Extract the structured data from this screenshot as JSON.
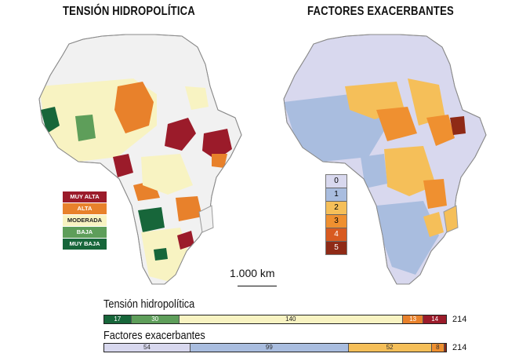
{
  "titles": {
    "left": "TENSIÓN HIDROPOLÍTICA",
    "right": "FACTORES EXACERBANTES"
  },
  "tension_legend": [
    {
      "label": "MUY ALTA",
      "color": "#9b1b2a"
    },
    {
      "label": "ALTA",
      "color": "#e8812b"
    },
    {
      "label": "MODERADA",
      "color": "#f8f3c2"
    },
    {
      "label": "BAJA",
      "color": "#5e9e5a"
    },
    {
      "label": "MUY BAJA",
      "color": "#17663a"
    }
  ],
  "factors_legend": [
    {
      "label": "0",
      "color": "#d8d8ee"
    },
    {
      "label": "1",
      "color": "#a9bddf"
    },
    {
      "label": "2",
      "color": "#f5bf59"
    },
    {
      "label": "3",
      "color": "#ef9030"
    },
    {
      "label": "4",
      "color": "#d85a20"
    },
    {
      "label": "5",
      "color": "#8f2a16"
    }
  ],
  "scale": {
    "label": "1.000 km"
  },
  "bars": {
    "tension": {
      "title": "Tensión hidropolítica",
      "total": "214",
      "segments": [
        {
          "value": 17,
          "label": "17",
          "color": "#17663a",
          "text_color": "#ffffff"
        },
        {
          "value": 30,
          "label": "30",
          "color": "#5e9e5a",
          "text_color": "#ffffff"
        },
        {
          "value": 140,
          "label": "140",
          "color": "#f8f3c2",
          "text_color": "#222222"
        },
        {
          "value": 13,
          "label": "13",
          "color": "#e8812b",
          "text_color": "#ffffff"
        },
        {
          "value": 14,
          "label": "14",
          "color": "#9b1b2a",
          "text_color": "#ffffff"
        }
      ]
    },
    "factors": {
      "title": "Factores exacerbantes",
      "total": "214",
      "segments": [
        {
          "value": 54,
          "label": "54",
          "color": "#d8d8ee",
          "text_color": "#333333"
        },
        {
          "value": 99,
          "label": "99",
          "color": "#a9bddf",
          "text_color": "#333333"
        },
        {
          "value": 52,
          "label": "52",
          "color": "#f5bf59",
          "text_color": "#333333"
        },
        {
          "value": 8,
          "label": "8",
          "color": "#ef9030",
          "text_color": "#333333"
        },
        {
          "value": 1,
          "label": "",
          "color": "#8f2a16",
          "text_color": "#ffffff"
        }
      ]
    }
  }
}
